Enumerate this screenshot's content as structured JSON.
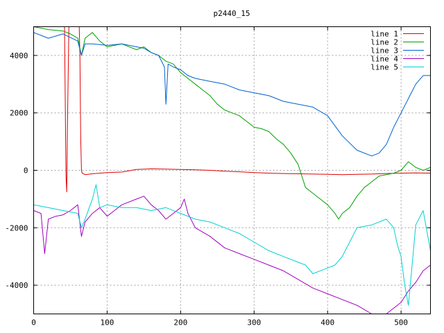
{
  "chart_data": {
    "type": "line",
    "title": "p2440_15",
    "xlabel": "",
    "ylabel": "",
    "xlim": [
      0,
      540
    ],
    "ylim": [
      -5000,
      5000
    ],
    "xticks": [
      0,
      100,
      200,
      300,
      400,
      500
    ],
    "yticks": [
      -4000,
      -2000,
      0,
      2000,
      4000
    ],
    "grid": true,
    "legend_position": "top-right",
    "series": [
      {
        "name": "line 1",
        "color": "#e00000",
        "x": [
          0,
          42,
          44,
          45,
          46,
          48,
          50,
          52,
          54,
          56,
          58,
          60,
          62,
          63,
          64,
          65,
          66,
          70,
          80,
          100,
          120,
          140,
          160,
          180,
          200,
          220,
          240,
          260,
          280,
          300,
          320,
          340,
          360,
          380,
          400,
          420,
          440,
          460,
          480,
          500,
          520,
          540
        ],
        "y": [
          5000,
          5000,
          -200,
          -750,
          1500,
          5000,
          5000,
          5000,
          5000,
          5000,
          5000,
          5000,
          5000,
          4000,
          1200,
          0,
          -100,
          -150,
          -120,
          -80,
          -60,
          30,
          50,
          40,
          30,
          20,
          0,
          -30,
          -50,
          -80,
          -100,
          -110,
          -120,
          -130,
          -140,
          -150,
          -140,
          -130,
          -110,
          -100,
          -90,
          -100
        ]
      },
      {
        "name": "line 2",
        "color": "#00a000",
        "x": [
          0,
          20,
          40,
          50,
          60,
          65,
          70,
          80,
          90,
          100,
          120,
          140,
          150,
          160,
          170,
          180,
          190,
          200,
          210,
          220,
          230,
          240,
          250,
          260,
          270,
          280,
          290,
          300,
          310,
          320,
          330,
          340,
          350,
          360,
          365,
          370,
          380,
          390,
          400,
          410,
          415,
          420,
          430,
          440,
          450,
          460,
          470,
          480,
          490,
          500,
          510,
          520,
          530,
          540
        ],
        "y": [
          5000,
          4900,
          4850,
          4750,
          4600,
          4000,
          4600,
          4800,
          4500,
          4300,
          4400,
          4200,
          4300,
          4100,
          4000,
          3800,
          3700,
          3400,
          3200,
          3000,
          2800,
          2600,
          2300,
          2100,
          2000,
          1900,
          1700,
          1500,
          1450,
          1350,
          1100,
          900,
          600,
          200,
          -200,
          -600,
          -800,
          -1000,
          -1200,
          -1500,
          -1700,
          -1500,
          -1300,
          -900,
          -600,
          -400,
          -200,
          -150,
          -100,
          0,
          300,
          100,
          0,
          100
        ]
      },
      {
        "name": "line 3",
        "color": "#0060d0",
        "x": [
          0,
          20,
          40,
          60,
          65,
          70,
          80,
          100,
          120,
          140,
          150,
          160,
          170,
          178,
          180,
          183,
          190,
          200,
          210,
          220,
          240,
          260,
          280,
          300,
          320,
          340,
          360,
          380,
          400,
          420,
          440,
          460,
          470,
          480,
          490,
          500,
          510,
          520,
          530,
          540
        ],
        "y": [
          4800,
          4600,
          4750,
          4500,
          4000,
          4400,
          4400,
          4350,
          4400,
          4300,
          4250,
          4100,
          4000,
          3600,
          2300,
          3700,
          3600,
          3500,
          3300,
          3200,
          3100,
          3000,
          2800,
          2700,
          2600,
          2400,
          2300,
          2200,
          1900,
          1200,
          700,
          500,
          600,
          900,
          1500,
          2000,
          2500,
          3000,
          3300,
          3300
        ]
      },
      {
        "name": "line 4",
        "color": "#a000c0",
        "x": [
          0,
          10,
          15,
          20,
          30,
          40,
          50,
          60,
          65,
          70,
          80,
          90,
          100,
          110,
          120,
          140,
          150,
          160,
          170,
          180,
          190,
          200,
          205,
          210,
          220,
          240,
          260,
          280,
          300,
          320,
          340,
          360,
          380,
          400,
          420,
          440,
          460,
          480,
          500,
          510,
          520,
          530,
          540
        ],
        "y": [
          -1400,
          -1500,
          -2900,
          -1700,
          -1600,
          -1550,
          -1400,
          -1200,
          -2300,
          -1800,
          -1500,
          -1300,
          -1600,
          -1400,
          -1200,
          -1000,
          -900,
          -1200,
          -1400,
          -1700,
          -1500,
          -1300,
          -1000,
          -1500,
          -2000,
          -2300,
          -2700,
          -2900,
          -3100,
          -3300,
          -3500,
          -3800,
          -4100,
          -4300,
          -4500,
          -4700,
          -5000,
          -5000,
          -4600,
          -4200,
          -3900,
          -3500,
          -3300
        ]
      },
      {
        "name": "line 5",
        "color": "#00d0d0",
        "x": [
          0,
          20,
          40,
          60,
          65,
          70,
          80,
          85,
          90,
          100,
          120,
          140,
          160,
          180,
          200,
          220,
          240,
          260,
          280,
          300,
          320,
          340,
          360,
          370,
          380,
          400,
          410,
          420,
          440,
          460,
          480,
          490,
          495,
          500,
          505,
          510,
          520,
          530,
          540
        ],
        "y": [
          -1200,
          -1300,
          -1400,
          -1500,
          -2000,
          -1700,
          -1000,
          -500,
          -1300,
          -1200,
          -1300,
          -1300,
          -1400,
          -1300,
          -1500,
          -1700,
          -1800,
          -2000,
          -2200,
          -2500,
          -2800,
          -3000,
          -3200,
          -3300,
          -3600,
          -3400,
          -3300,
          -3000,
          -2000,
          -1900,
          -1700,
          -2000,
          -2600,
          -3000,
          -4000,
          -4700,
          -1900,
          -1400,
          -2800
        ]
      }
    ]
  }
}
